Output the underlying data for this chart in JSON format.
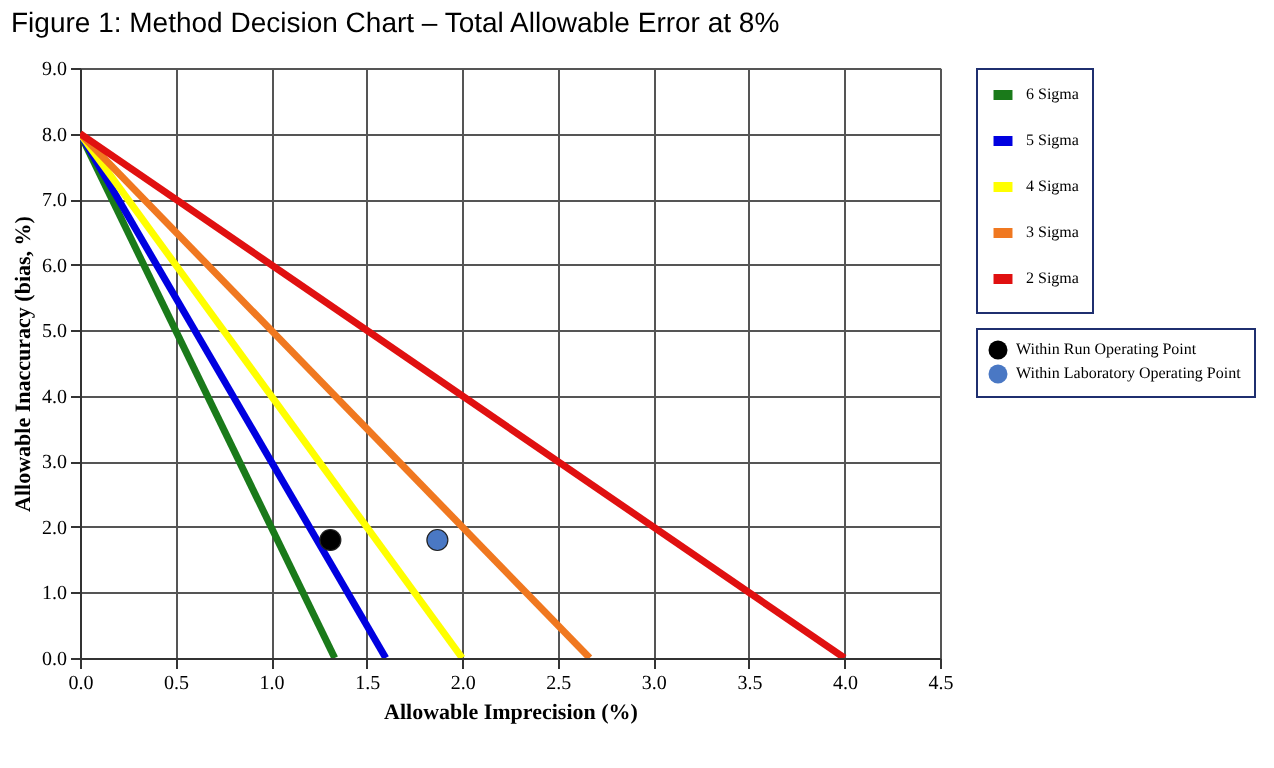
{
  "chart_data": {
    "type": "line",
    "title": "Figure 1: Method Decision Chart – Total Allowable Error at 8%",
    "xlabel": "Allowable Imprecision (%)",
    "ylabel": "Allowable Inaccuracy (bias, %)",
    "xlim": [
      0,
      4.5
    ],
    "ylim": [
      0,
      9
    ],
    "xticks": [
      {
        "value": 0,
        "label": "0.0"
      },
      0.5,
      {
        "value": 1,
        "label": "1.0"
      },
      1.5,
      {
        "value": 2,
        "label": "2.0"
      },
      2.5,
      {
        "value": 3,
        "label": "3.0"
      },
      3.5,
      {
        "value": 4,
        "label": "4.0"
      },
      4.5
    ],
    "yticks": [
      {
        "value": 0,
        "label": "0.0"
      },
      {
        "value": 1,
        "label": "1.0"
      },
      {
        "value": 2,
        "label": "2.0"
      },
      {
        "value": 3,
        "label": "3.0"
      },
      {
        "value": 4,
        "label": "4.0"
      },
      {
        "value": 5,
        "label": "5.0"
      },
      {
        "value": 6,
        "label": "6.0"
      },
      {
        "value": 7,
        "label": "7.0"
      },
      {
        "value": 8,
        "label": "8.0"
      },
      {
        "value": 9,
        "label": "9.0"
      }
    ],
    "grid": true,
    "legend": "right",
    "line_style": "solid",
    "series": [
      {
        "name": "6 Sigma",
        "color": "#1a7a1a",
        "x": [
          0,
          1.333
        ],
        "values": [
          8,
          0
        ]
      },
      {
        "name": "5 Sigma",
        "color": "#0000e0",
        "x": [
          0,
          1.6
        ],
        "values": [
          8,
          0
        ]
      },
      {
        "name": "4 Sigma",
        "color": "#ffff00",
        "x": [
          0,
          2.0
        ],
        "values": [
          8,
          0
        ]
      },
      {
        "name": "3 Sigma",
        "color": "#f07820",
        "x": [
          0,
          2.667
        ],
        "values": [
          8,
          0
        ]
      },
      {
        "name": "2 Sigma",
        "color": "#e01010",
        "x": [
          0,
          4.0
        ],
        "values": [
          8,
          0
        ]
      },
      {
        "name": "Within Run Operating Point",
        "type": "scatter",
        "marker": "circle",
        "color": "#000000",
        "x": [
          1.31
        ],
        "values": [
          1.8
        ]
      },
      {
        "name": "Within Laboratory Operating Point",
        "type": "scatter",
        "marker": "circle",
        "color": "#4a78c4",
        "x": [
          1.87
        ],
        "values": [
          1.8
        ]
      }
    ]
  }
}
